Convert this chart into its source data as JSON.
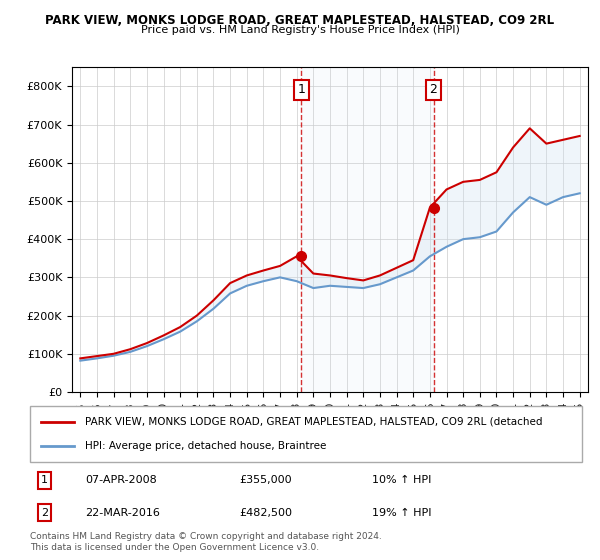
{
  "title1": "PARK VIEW, MONKS LODGE ROAD, GREAT MAPLESTEAD, HALSTEAD, CO9 2RL",
  "title2": "Price paid vs. HM Land Registry's House Price Index (HPI)",
  "legend_line1": "PARK VIEW, MONKS LODGE ROAD, GREAT MAPLESTEAD, HALSTEAD, CO9 2RL (detached",
  "legend_line2": "HPI: Average price, detached house, Braintree",
  "footnote": "Contains HM Land Registry data © Crown copyright and database right 2024.\nThis data is licensed under the Open Government Licence v3.0.",
  "sale1_label": "1",
  "sale1_date": "07-APR-2008",
  "sale1_price": "£355,000",
  "sale1_hpi": "10% ↑ HPI",
  "sale2_label": "2",
  "sale2_date": "22-MAR-2016",
  "sale2_price": "£482,500",
  "sale2_hpi": "19% ↑ HPI",
  "red_color": "#cc0000",
  "blue_color": "#6699cc",
  "fill_color": "#cce0f0",
  "annotation_box_color": "#cc0000",
  "background_chart": "#ffffff",
  "grid_color": "#cccccc",
  "years": [
    1995,
    1996,
    1997,
    1998,
    1999,
    2000,
    2001,
    2002,
    2003,
    2004,
    2005,
    2006,
    2007,
    2008,
    2009,
    2010,
    2011,
    2012,
    2013,
    2014,
    2015,
    2016,
    2017,
    2018,
    2019,
    2020,
    2021,
    2022,
    2023,
    2024,
    2025
  ],
  "hpi_values": [
    82000,
    88000,
    95000,
    105000,
    120000,
    138000,
    158000,
    185000,
    218000,
    258000,
    278000,
    290000,
    300000,
    290000,
    272000,
    278000,
    275000,
    272000,
    282000,
    300000,
    318000,
    355000,
    380000,
    400000,
    405000,
    420000,
    470000,
    510000,
    490000,
    510000,
    520000
  ],
  "red_values": [
    88000,
    94000,
    100000,
    112000,
    128000,
    148000,
    170000,
    200000,
    240000,
    285000,
    305000,
    318000,
    330000,
    355000,
    310000,
    305000,
    298000,
    292000,
    305000,
    325000,
    345000,
    482500,
    530000,
    550000,
    555000,
    575000,
    640000,
    690000,
    650000,
    660000,
    670000
  ],
  "sale1_x": 2008.27,
  "sale1_y": 355000,
  "sale2_x": 2016.22,
  "sale2_y": 482500,
  "ylim": [
    0,
    850000
  ],
  "xlim_left": 1994.5,
  "xlim_right": 2025.5
}
